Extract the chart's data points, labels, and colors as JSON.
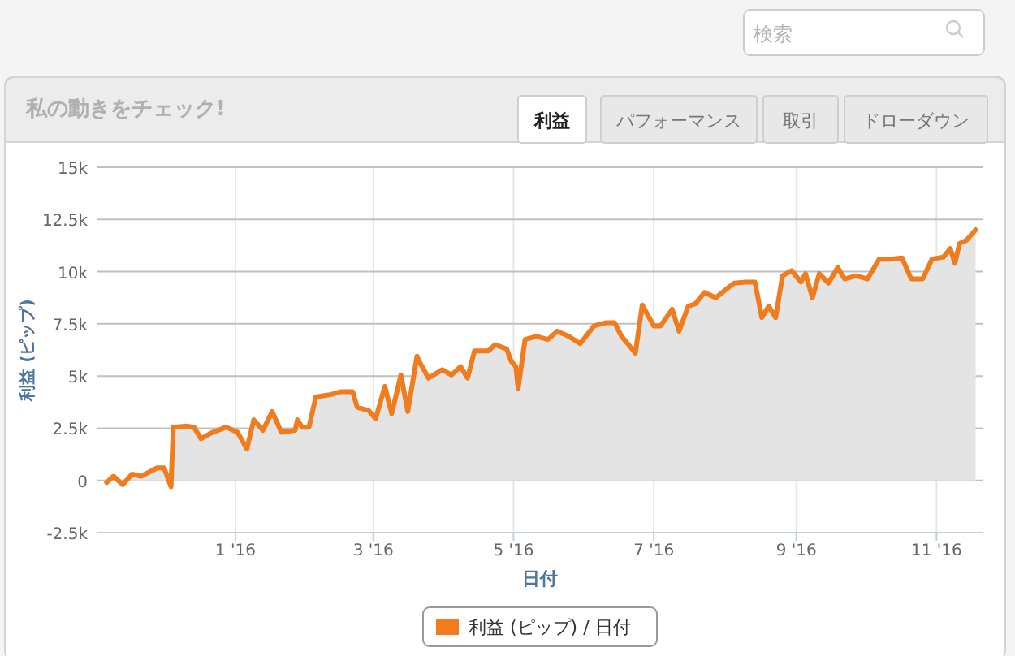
{
  "chart_data": {
    "type": "area",
    "title": "私の動きをチェック!",
    "xlabel": "日付",
    "ylabel": "利益 (ピップ)",
    "annotations": [
      "利益",
      "パフォーマンス",
      "取引",
      "ドローダウン",
      "検索"
    ],
    "xlim": [
      "2015-11-02",
      "2016-11-21"
    ],
    "xticks": [
      {
        "value": "2016-01-01",
        "label": "1 '16"
      },
      {
        "value": "2016-03-01",
        "label": "3 '16"
      },
      {
        "value": "2016-05-01",
        "label": "5 '16"
      },
      {
        "value": "2016-07-01",
        "label": "7 '16"
      },
      {
        "value": "2016-09-01",
        "label": "9 '16"
      },
      {
        "value": "2016-11-01",
        "label": "11 '16"
      }
    ],
    "ylim": [
      -2500,
      15000
    ],
    "yticks": [
      {
        "value": -2500,
        "label": "-2.5k"
      },
      0,
      {
        "value": 2500,
        "label": "2.5k"
      },
      {
        "value": 5000,
        "label": "5k"
      },
      {
        "value": 7500,
        "label": "7.5k"
      },
      {
        "value": 10000,
        "label": "10k"
      },
      {
        "value": 12500,
        "label": "12.5k"
      },
      {
        "value": 15000,
        "label": "15k"
      }
    ],
    "grid": true,
    "legend": "bottom",
    "marker": "none",
    "line_style": "solid",
    "x": [
      "2015-11-06",
      "2015-11-09",
      "2015-11-13",
      "2015-11-17",
      "2015-11-21",
      "2015-11-28",
      "2015-12-01",
      "2015-12-04",
      "2015-12-05",
      "2015-12-11",
      "2015-12-14",
      "2015-12-17",
      "2015-12-22",
      "2015-12-28",
      "2016-01-02",
      "2016-01-06",
      "2016-01-09",
      "2016-01-13",
      "2016-01-17",
      "2016-01-21",
      "2016-01-27",
      "2016-01-28",
      "2016-01-30",
      "2016-02-02",
      "2016-02-05",
      "2016-02-11",
      "2016-02-16",
      "2016-02-21",
      "2016-02-23",
      "2016-02-28",
      "2016-03-02",
      "2016-03-06",
      "2016-03-09",
      "2016-03-13",
      "2016-03-16",
      "2016-03-20",
      "2016-03-21",
      "2016-03-25",
      "2016-03-31",
      "2016-04-04",
      "2016-04-08",
      "2016-04-11",
      "2016-04-14",
      "2016-04-20",
      "2016-04-23",
      "2016-04-28",
      "2016-04-30",
      "2016-05-02",
      "2016-05-03",
      "2016-05-06",
      "2016-05-11",
      "2016-05-16",
      "2016-05-20",
      "2016-05-25",
      "2016-05-30",
      "2016-06-05",
      "2016-06-10",
      "2016-06-14",
      "2016-06-17",
      "2016-06-23",
      "2016-06-26",
      "2016-07-01",
      "2016-07-04",
      "2016-07-09",
      "2016-07-12",
      "2016-07-16",
      "2016-07-19",
      "2016-07-23",
      "2016-07-28",
      "2016-08-02",
      "2016-08-05",
      "2016-08-10",
      "2016-08-14",
      "2016-08-17",
      "2016-08-20",
      "2016-08-23",
      "2016-08-26",
      "2016-08-30",
      "2016-09-03",
      "2016-09-05",
      "2016-09-08",
      "2016-09-11",
      "2016-09-15",
      "2016-09-19",
      "2016-09-22",
      "2016-09-27",
      "2016-10-02",
      "2016-10-07",
      "2016-10-12",
      "2016-10-17",
      "2016-10-21",
      "2016-10-26",
      "2016-10-30",
      "2016-11-04",
      "2016-11-07",
      "2016-11-09",
      "2016-11-11",
      "2016-11-14",
      "2016-11-18"
    ],
    "series": [
      {
        "name": "利益 (ピップ) / 日付",
        "color": "#f07c1e",
        "values": [
          -100,
          200,
          -200,
          300,
          200,
          600,
          600,
          -300,
          2550,
          2600,
          2550,
          2000,
          2300,
          2550,
          2300,
          1500,
          2900,
          2400,
          3300,
          2300,
          2400,
          2900,
          2550,
          2550,
          4000,
          4100,
          4250,
          4250,
          3500,
          3350,
          2950,
          4500,
          3200,
          5050,
          3300,
          5950,
          5700,
          4900,
          5300,
          5050,
          5450,
          4900,
          6200,
          6200,
          6500,
          6300,
          5700,
          5450,
          4400,
          6750,
          6900,
          6750,
          7150,
          6900,
          6550,
          7400,
          7550,
          7550,
          6900,
          6100,
          8400,
          7400,
          7400,
          8200,
          7150,
          8350,
          8450,
          9000,
          8750,
          9200,
          9450,
          9500,
          9500,
          7800,
          8350,
          7800,
          9800,
          10050,
          9500,
          9900,
          8750,
          9900,
          9450,
          10200,
          9650,
          9800,
          9650,
          10600,
          10600,
          10650,
          9650,
          9650,
          10600,
          10700,
          11100,
          10400,
          11350,
          11500,
          12000
        ]
      }
    ]
  }
}
